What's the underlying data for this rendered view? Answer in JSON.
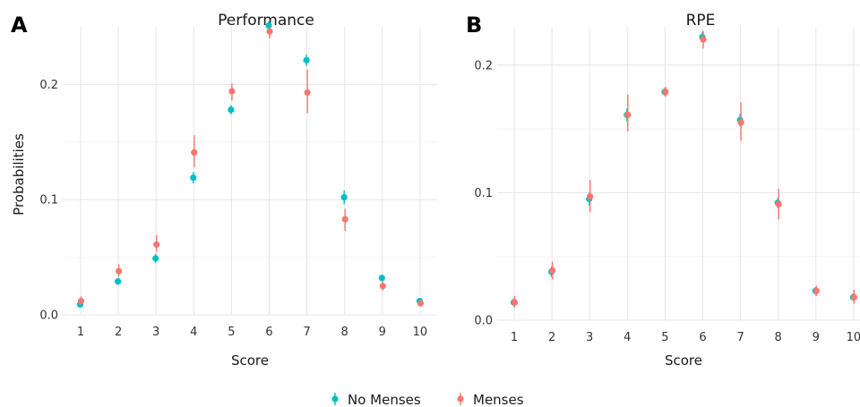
{
  "colors": {
    "no_menses": "#00BFC4",
    "menses": "#F8766D"
  },
  "legend": [
    {
      "name": "No Menses",
      "color": "#00BFC4"
    },
    {
      "name": "Menses",
      "color": "#F8766D"
    }
  ],
  "chart_data": [
    {
      "panel": "A",
      "type": "scatter",
      "title": "Performance",
      "xlabel": "Score",
      "ylabel": "Probabilities",
      "categories": [
        "1",
        "2",
        "3",
        "4",
        "5",
        "6",
        "7",
        "8",
        "9",
        "10"
      ],
      "ylim": [
        0,
        0.25
      ],
      "yticks": [
        "0.0",
        "0.1",
        "0.2"
      ],
      "ytick_values": [
        0.0,
        0.1,
        0.2
      ],
      "grid": true,
      "legend_position": "bottom",
      "series": [
        {
          "name": "No Menses",
          "color": "#00BFC4",
          "values": [
            0.009,
            0.029,
            0.049,
            0.119,
            0.178,
            0.251,
            0.221,
            0.102,
            0.032,
            0.012
          ],
          "lower": [
            0.007,
            0.026,
            0.045,
            0.114,
            0.174,
            0.247,
            0.216,
            0.096,
            0.029,
            0.01
          ],
          "upper": [
            0.011,
            0.032,
            0.053,
            0.124,
            0.182,
            0.255,
            0.226,
            0.108,
            0.035,
            0.014
          ]
        },
        {
          "name": "Menses",
          "color": "#F8766D",
          "values": [
            0.012,
            0.038,
            0.061,
            0.141,
            0.194,
            0.246,
            0.193,
            0.083,
            0.025,
            0.01
          ],
          "lower": [
            0.009,
            0.033,
            0.055,
            0.128,
            0.186,
            0.24,
            0.175,
            0.073,
            0.021,
            0.008
          ],
          "upper": [
            0.016,
            0.044,
            0.069,
            0.156,
            0.201,
            0.25,
            0.213,
            0.092,
            0.029,
            0.013
          ]
        }
      ]
    },
    {
      "panel": "B",
      "type": "scatter",
      "title": "RPE",
      "xlabel": "Score",
      "ylabel": "",
      "categories": [
        "1",
        "2",
        "3",
        "4",
        "5",
        "6",
        "7",
        "8",
        "9",
        "10"
      ],
      "ylim": [
        0,
        0.23
      ],
      "yticks": [
        "0.0",
        "0.1",
        "0.2"
      ],
      "ytick_values": [
        0.0,
        0.1,
        0.2
      ],
      "grid": true,
      "legend_position": "bottom",
      "series": [
        {
          "name": "No Menses",
          "color": "#00BFC4",
          "values": [
            0.014,
            0.038,
            0.095,
            0.161,
            0.179,
            0.222,
            0.157,
            0.092,
            0.023,
            0.018
          ],
          "lower": [
            0.011,
            0.034,
            0.09,
            0.156,
            0.176,
            0.218,
            0.152,
            0.088,
            0.02,
            0.015
          ],
          "upper": [
            0.017,
            0.042,
            0.1,
            0.166,
            0.182,
            0.226,
            0.162,
            0.096,
            0.026,
            0.021
          ]
        },
        {
          "name": "Menses",
          "color": "#F8766D",
          "values": [
            0.014,
            0.039,
            0.097,
            0.161,
            0.179,
            0.22,
            0.155,
            0.091,
            0.023,
            0.018
          ],
          "lower": [
            0.01,
            0.032,
            0.085,
            0.148,
            0.175,
            0.213,
            0.141,
            0.079,
            0.019,
            0.013
          ],
          "upper": [
            0.019,
            0.046,
            0.11,
            0.177,
            0.183,
            0.227,
            0.171,
            0.103,
            0.027,
            0.024
          ]
        }
      ]
    }
  ]
}
